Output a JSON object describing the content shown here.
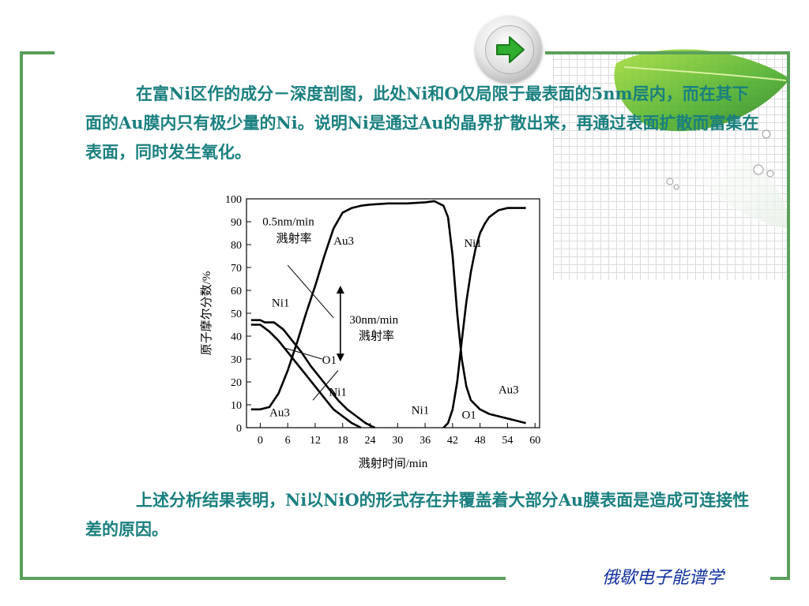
{
  "slide": {
    "para1": "在富Ni区作的成分－深度剖图，此处Ni和O仅局限于最表面的5nm层内，而在其下面的Au膜内只有极少量的Ni。说明Ni是通过Au的晶界扩散出来，再通过表面扩散而富集在表面，同时发生氧化。",
    "para2": "上述分析结果表明，Ni以NiO的形式存在并覆盖着大部分Au膜表面是造成可连接性差的原因。",
    "footer": "俄歇电子能谱学",
    "next_icon": "green-right-arrow-icon",
    "colors": {
      "text": "#1a7f7f",
      "frame": "#5aa05a",
      "footer": "#1030a0"
    }
  },
  "chart_data": {
    "type": "line",
    "xlabel": "溅射时间/min",
    "ylabel": "原子摩尔分数/%",
    "xlim": [
      0,
      60
    ],
    "ylim": [
      0,
      100
    ],
    "xticks": [
      "0",
      "6",
      "12",
      "18",
      "24",
      "30",
      "36",
      "42",
      "48",
      "54",
      "60"
    ],
    "yticks": [
      "0",
      "10",
      "20",
      "30",
      "40",
      "50",
      "60",
      "70",
      "80",
      "90",
      "100"
    ],
    "annotations": {
      "rate1": [
        "0.5nm/min",
        "溅射率"
      ],
      "rate2": [
        "30nm/min",
        "溅射率"
      ],
      "labels": [
        "Au3",
        "Ni1",
        "O1",
        "Ni1",
        "Au3",
        "Ni1",
        "Ni1",
        "Au3",
        "O1"
      ]
    },
    "series": [
      {
        "name": "Au3",
        "x": [
          -2,
          0,
          2,
          4,
          6,
          8,
          10,
          12,
          14,
          16,
          18,
          20,
          22,
          24,
          28,
          32,
          36,
          38,
          40,
          41
        ],
        "y": [
          8,
          8,
          9,
          15,
          25,
          37,
          50,
          62,
          75,
          87,
          94,
          96,
          97,
          97.5,
          98,
          98,
          98.5,
          99,
          97,
          92
        ]
      },
      {
        "name": "Au3",
        "x": [
          41,
          42,
          43,
          44,
          45,
          46,
          47,
          48,
          49,
          50,
          52,
          54,
          56,
          58
        ],
        "y": [
          92,
          75,
          50,
          30,
          18,
          12,
          10,
          8,
          7,
          6,
          5,
          4,
          3,
          2
        ]
      },
      {
        "name": "Ni1",
        "x": [
          -2,
          0,
          1,
          3,
          5,
          7,
          9,
          11,
          13,
          15,
          17,
          19,
          21,
          23,
          25
        ],
        "y": [
          47,
          47,
          46,
          46,
          43,
          38,
          33,
          27,
          22,
          17,
          12,
          8,
          5,
          2,
          0
        ]
      },
      {
        "name": "O1",
        "x": [
          -2,
          0,
          2,
          4,
          6,
          8,
          10,
          12,
          14,
          16,
          18,
          20,
          22
        ],
        "y": [
          45,
          45,
          42,
          38,
          33,
          28,
          23,
          18,
          13,
          8,
          5,
          2,
          0
        ]
      },
      {
        "name": "Ni1",
        "x": [
          40,
          41,
          42,
          43,
          44,
          45,
          46,
          47,
          48,
          49,
          50,
          52,
          54,
          56,
          58
        ],
        "y": [
          0,
          2,
          8,
          20,
          38,
          55,
          68,
          78,
          85,
          89,
          92,
          95,
          96,
          96,
          96
        ]
      }
    ]
  }
}
